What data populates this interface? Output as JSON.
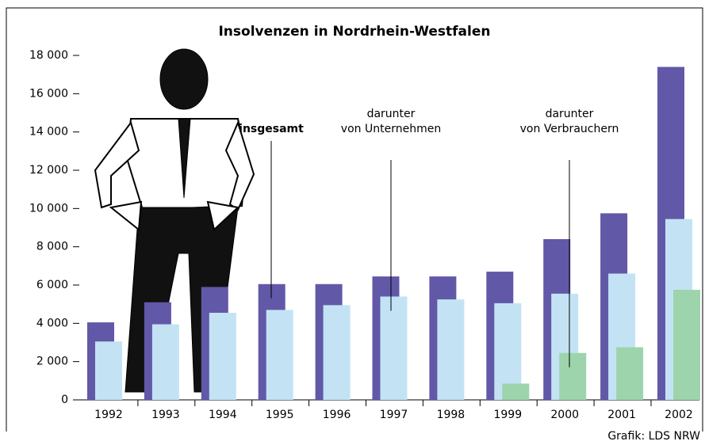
{
  "chart_data": {
    "type": "bar",
    "title": "Insolvenzen in Nordrhein-Westfalen",
    "source": "Grafik: LDS NRW",
    "categories": [
      "1992",
      "1993",
      "1994",
      "1995",
      "1996",
      "1997",
      "1998",
      "1999",
      "2000",
      "2001",
      "2002"
    ],
    "series": [
      {
        "name": "insgesamt",
        "color": "#6258a8",
        "values": [
          4050,
          5100,
          5900,
          6050,
          6050,
          6450,
          6450,
          6700,
          8400,
          9750,
          17400
        ]
      },
      {
        "name": "darunter\nvon Unternehmen",
        "color": "#c3e3f5",
        "values": [
          3050,
          3950,
          4550,
          4700,
          4950,
          5400,
          5250,
          5050,
          5550,
          6600,
          9450
        ]
      },
      {
        "name": "darunter\nvon Verbrauchern",
        "color": "#9dd4ac",
        "values": [
          null,
          null,
          null,
          null,
          null,
          null,
          null,
          850,
          2450,
          2750,
          5750
        ]
      }
    ],
    "ylim": [
      0,
      18000
    ],
    "yticks": [
      0,
      {
        "value": 2000,
        "label": "2 000"
      },
      {
        "value": 4000,
        "label": "4 000"
      },
      {
        "value": 6000,
        "label": "6 000"
      },
      {
        "value": 8000,
        "label": "8 000"
      },
      {
        "value": 10000,
        "label": "10 000"
      },
      {
        "value": 12000,
        "label": "12 000"
      },
      {
        "value": 14000,
        "label": "14 000"
      },
      {
        "value": 16000,
        "label": "16 000"
      },
      {
        "value": 18000,
        "label": "18 000"
      }
    ]
  }
}
